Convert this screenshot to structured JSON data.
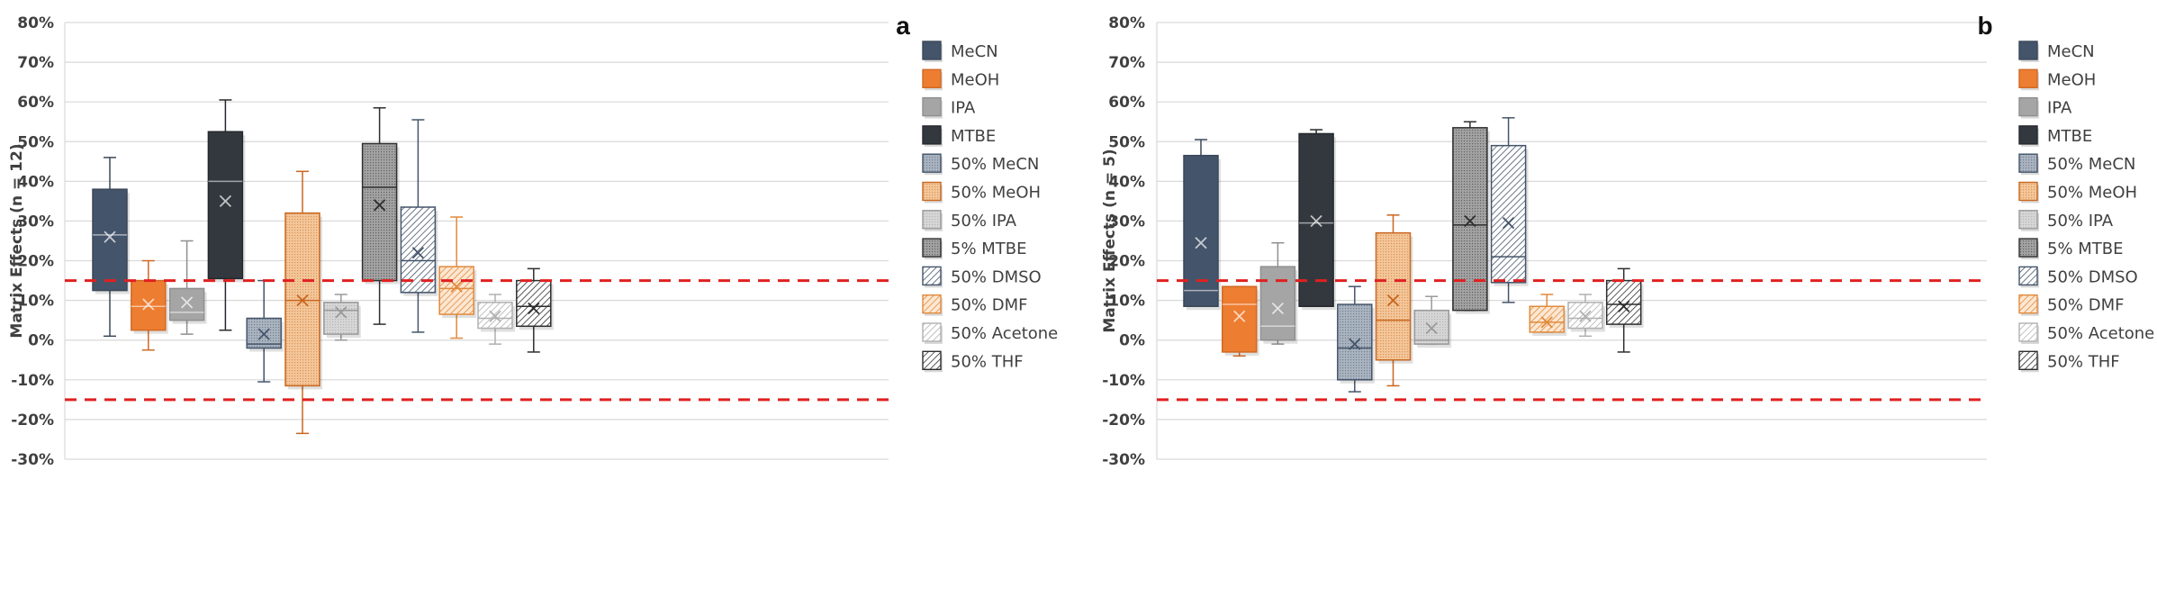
{
  "chart_data": [
    {
      "type": "box",
      "panel_label": "a",
      "ylabel": "Matrix Effects (n = 12)",
      "ylim": [
        -30,
        80
      ],
      "yticks": [
        80,
        70,
        60,
        50,
        40,
        30,
        20,
        10,
        0,
        -10,
        -20,
        -30
      ],
      "ytick_labels": [
        "80%",
        "70%",
        "60%",
        "50%",
        "40%",
        "30%",
        "20%",
        "10%",
        "0%",
        "-10%",
        "-20%",
        "-30%"
      ],
      "grid": true,
      "reference_lines": [
        15,
        -15
      ],
      "reference_line_color": "#e02020",
      "legend_position": "right",
      "series": [
        {
          "name": "MeCN",
          "min": 1,
          "q1": 12.5,
          "median": 26.5,
          "q3": 38,
          "max": 46,
          "mean": 26
        },
        {
          "name": "MeOH",
          "min": -2.5,
          "q1": 2.5,
          "median": 8.5,
          "q3": 15,
          "max": 20,
          "mean": 9
        },
        {
          "name": "IPA",
          "min": 1.5,
          "q1": 5,
          "median": 7,
          "q3": 13,
          "max": 25,
          "mean": 9.5
        },
        {
          "name": "MTBE",
          "min": 2.5,
          "q1": 15.5,
          "median": 40,
          "q3": 52.5,
          "max": 60.5,
          "mean": 35
        },
        {
          "name": "50% MeCN",
          "min": -10.5,
          "q1": -2,
          "median": -1,
          "q3": 5.5,
          "max": 15,
          "mean": 1.5
        },
        {
          "name": "50% MeOH",
          "min": -23.5,
          "q1": -11.5,
          "median": 10,
          "q3": 32,
          "max": 42.5,
          "mean": 10
        },
        {
          "name": "50% IPA",
          "min": 0,
          "q1": 1.5,
          "median": 7.5,
          "q3": 9.5,
          "max": 11.5,
          "mean": 7
        },
        {
          "name": "5% MTBE",
          "min": 4,
          "q1": 15,
          "median": 38.5,
          "q3": 49.5,
          "max": 58.5,
          "mean": 34
        },
        {
          "name": "50% DMSO",
          "min": 2,
          "q1": 12,
          "median": 20,
          "q3": 33.5,
          "max": 55.5,
          "mean": 22
        },
        {
          "name": "50% DMF",
          "min": 0.5,
          "q1": 6.5,
          "median": 13,
          "q3": 18.5,
          "max": 31,
          "mean": 13.5
        },
        {
          "name": "50% Acetone",
          "min": -1,
          "q1": 3,
          "median": 5.5,
          "q3": 9.5,
          "max": 11.5,
          "mean": 6
        },
        {
          "name": "50% THF",
          "min": -3,
          "q1": 3.5,
          "median": 8.5,
          "q3": 15,
          "max": 18,
          "mean": 8
        }
      ]
    },
    {
      "type": "box",
      "panel_label": "b",
      "ylabel": "Matrix Effects (n = 5)",
      "ylim": [
        -30,
        80
      ],
      "yticks": [
        80,
        70,
        60,
        50,
        40,
        30,
        20,
        10,
        0,
        -10,
        -20,
        -30
      ],
      "ytick_labels": [
        "80%",
        "70%",
        "60%",
        "50%",
        "40%",
        "30%",
        "20%",
        "10%",
        "0%",
        "-10%",
        "-20%",
        "-30%"
      ],
      "grid": true,
      "reference_lines": [
        15,
        -15
      ],
      "reference_line_color": "#e02020",
      "legend_position": "right",
      "series": [
        {
          "name": "MeCN",
          "min": 8.5,
          "q1": 8.5,
          "median": 12.5,
          "q3": 46.5,
          "max": 50.5,
          "mean": 24.5
        },
        {
          "name": "MeOH",
          "min": -4,
          "q1": -3,
          "median": 9,
          "q3": 13.5,
          "max": 13.5,
          "mean": 6
        },
        {
          "name": "IPA",
          "min": -1,
          "q1": 0,
          "median": 3.5,
          "q3": 18.5,
          "max": 24.5,
          "mean": 8
        },
        {
          "name": "MTBE",
          "min": 8.5,
          "q1": 8.5,
          "median": 29.5,
          "q3": 52,
          "max": 53,
          "mean": 30
        },
        {
          "name": "50% MeCN",
          "min": -13,
          "q1": -10,
          "median": -2,
          "q3": 9,
          "max": 13.5,
          "mean": -1
        },
        {
          "name": "50% MeOH",
          "min": -11.5,
          "q1": -5,
          "median": 5,
          "q3": 27,
          "max": 31.5,
          "mean": 10
        },
        {
          "name": "50% IPA",
          "min": -1,
          "q1": -1,
          "median": 0,
          "q3": 7.5,
          "max": 11,
          "mean": 3
        },
        {
          "name": "5% MTBE",
          "min": 7.5,
          "q1": 7.5,
          "median": 29,
          "q3": 53.5,
          "max": 55,
          "mean": 30
        },
        {
          "name": "50% DMSO",
          "min": 9.5,
          "q1": 14.5,
          "median": 21,
          "q3": 49,
          "max": 56,
          "mean": 29.5
        },
        {
          "name": "50% DMF",
          "min": 2,
          "q1": 2,
          "median": 4.5,
          "q3": 8.5,
          "max": 11.5,
          "mean": 4.5
        },
        {
          "name": "50% Acetone",
          "min": 1,
          "q1": 3,
          "median": 5.5,
          "q3": 9.5,
          "max": 11.5,
          "mean": 6
        },
        {
          "name": "50% THF",
          "min": -3,
          "q1": 4,
          "median": 9,
          "q3": 15,
          "max": 18,
          "mean": 8.5
        }
      ]
    }
  ],
  "series_styles": [
    {
      "fill": "#44546a",
      "stroke": "#3a4859",
      "pattern": "solid"
    },
    {
      "fill": "#ed7d31",
      "stroke": "#d06a25",
      "pattern": "solid"
    },
    {
      "fill": "#a5a5a5",
      "stroke": "#8f8f8f",
      "pattern": "solid"
    },
    {
      "fill": "#32383e",
      "stroke": "#25292d",
      "pattern": "solid"
    },
    {
      "fill": "#aab4c0",
      "stroke": "#44546a",
      "pattern": "dots"
    },
    {
      "fill": "#f3c79a",
      "stroke": "#c8661f",
      "pattern": "dots"
    },
    {
      "fill": "#d6d6d6",
      "stroke": "#9a9a9a",
      "pattern": "dots"
    },
    {
      "fill": "#a3a3a3",
      "stroke": "#2e2e2e",
      "pattern": "dots"
    },
    {
      "fill": "#ffffff",
      "stroke": "#44546a",
      "pattern": "hatch"
    },
    {
      "fill": "#fde7d2",
      "stroke": "#e08a3c",
      "pattern": "hatch"
    },
    {
      "fill": "#ffffff",
      "stroke": "#b0b0b0",
      "pattern": "hatch"
    },
    {
      "fill": "#ffffff",
      "stroke": "#2e2e2e",
      "pattern": "hatch"
    }
  ]
}
